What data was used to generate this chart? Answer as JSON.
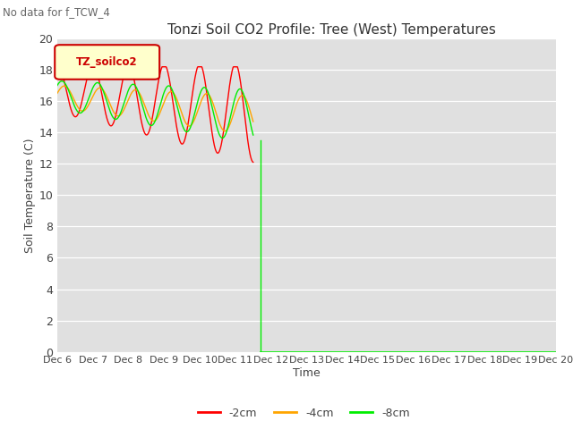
{
  "title": "Tonzi Soil CO2 Profile: Tree (West) Temperatures",
  "no_data_text": "No data for f_TCW_4",
  "xlabel": "Time",
  "ylabel": "Soil Temperature (C)",
  "ylim": [
    0,
    20
  ],
  "yticks": [
    0,
    2,
    4,
    6,
    8,
    10,
    12,
    14,
    16,
    18,
    20
  ],
  "xtick_labels": [
    "Dec 6",
    "Dec 7",
    "Dec 8",
    "Dec 9",
    "Dec 10",
    "Dec 11",
    "Dec 12",
    "Dec 13",
    "Dec 14",
    "Dec 15",
    "Dec 16",
    "Dec 17",
    "Dec 18",
    "Dec 19",
    "Dec 20"
  ],
  "legend_label": "TZ_soilco2",
  "bg_color": "#e0e0e0",
  "color_red": "#ff0000",
  "color_orange": "#ffa500",
  "color_green": "#00ee00",
  "legend_items": [
    "-2cm",
    "-4cm",
    "-8cm"
  ]
}
